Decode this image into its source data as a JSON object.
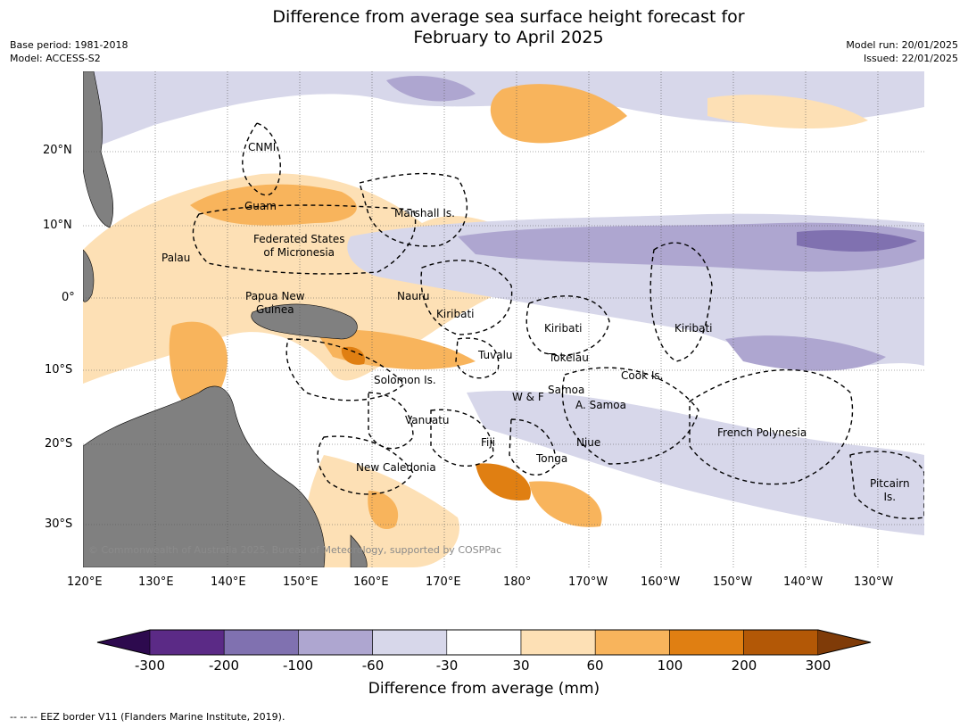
{
  "title": "Difference from average sea surface height forecast for\nFebruary to April 2025",
  "meta_left": "Base period: 1981-2018\nModel: ACCESS-S2",
  "meta_right": "Model run: 20/01/2025\nIssued: 22/01/2025",
  "lon_ticks": [
    "120°E",
    "130°E",
    "140°E",
    "150°E",
    "160°E",
    "170°E",
    "180°",
    "170°W",
    "160°W",
    "150°W",
    "140°W",
    "130°W"
  ],
  "lat_ticks": [
    "20°N",
    "10°N",
    "0°",
    "10°S",
    "20°S",
    "30°S"
  ],
  "regions": [
    "CNMI",
    "Guam",
    "Marshall Is.",
    "Federated States\nof Micronesia",
    "Palau",
    "Nauru",
    "Papua New\nGuinea",
    "Kiribati",
    "Kiribati",
    "Kiribati",
    "Tuvalu",
    "Tokelau",
    "Solomon Is.",
    "Samoa",
    "W & F",
    "A. Samoa",
    "Cook Is.",
    "Vanuatu",
    "Fiji",
    "Niue",
    "French Polynesia",
    "Tonga",
    "New Caledonia",
    "Pitcairn\nIs."
  ],
  "copyright": "© Commonwealth of Australia 2025, Bureau of Meteorology, supported by COSPPac",
  "colorbar": {
    "ticks": [
      "-300",
      "-200",
      "-100",
      "-60",
      "-30",
      "30",
      "60",
      "100",
      "200",
      "300"
    ],
    "colors": [
      "#2d0a4e",
      "#5b2a86",
      "#8071b0",
      "#aea6d0",
      "#d7d7ea",
      "#ffffff",
      "#fde0b5",
      "#f8b45c",
      "#e07f12",
      "#b35806",
      "#7f3b08"
    ],
    "title": "Difference from average (mm)"
  },
  "footnote": "--  --  -- EEZ border V11 (Flanders Marine Institute, 2019).",
  "land_color": "#808080"
}
